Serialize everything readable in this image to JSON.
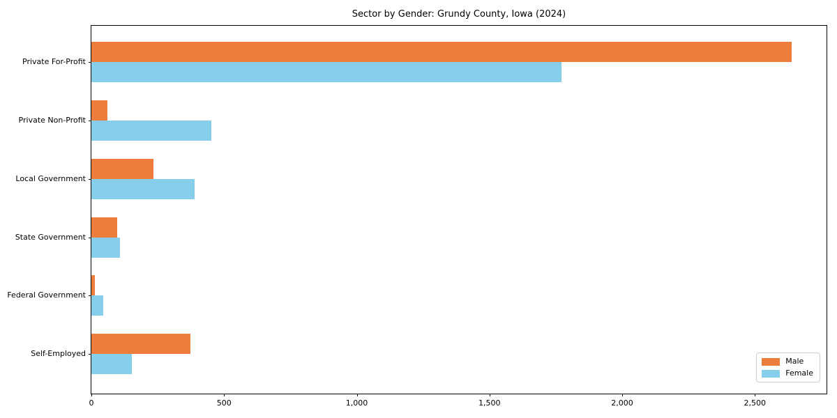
{
  "chart_data": {
    "type": "bar",
    "orientation": "horizontal",
    "title": "Sector by Gender: Grundy County, Iowa (2024)",
    "categories": [
      "Private For-Profit",
      "Private Non-Profit",
      "Local Government",
      "State Government",
      "Federal Government",
      "Self-Employed"
    ],
    "series": [
      {
        "name": "Male",
        "color": "#EC7D3C",
        "values": [
          2638,
          60,
          234,
          98,
          12,
          374
        ]
      },
      {
        "name": "Female",
        "color": "#87CEEB",
        "values": [
          1771,
          453,
          389,
          107,
          45,
          152
        ]
      }
    ],
    "xlabel": "",
    "ylabel": "",
    "xlim": [
      0,
      2770
    ],
    "x_ticks": [
      0,
      500,
      1000,
      1500,
      2000,
      2500
    ],
    "x_tick_labels": [
      "0",
      "500",
      "1,000",
      "1,500",
      "2,000",
      "2,500"
    ],
    "legend_position": "lower right",
    "grid": false,
    "plot_border_color": "#000000",
    "background_color": "#ffffff"
  }
}
